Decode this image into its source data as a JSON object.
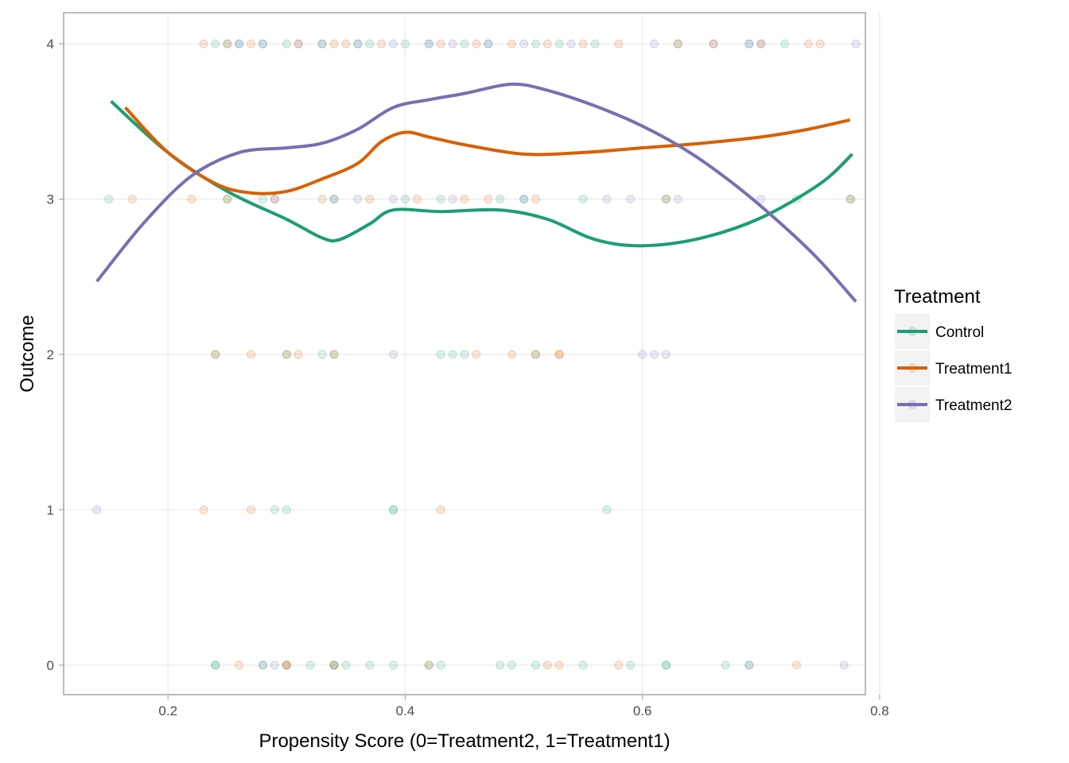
{
  "chart_data": {
    "type": "scatter",
    "xlabel": "Propensity Score (0=Treatment2, 1=Treatment1)",
    "ylabel": "Outcome",
    "xlim": [
      0.112,
      0.788
    ],
    "ylim": [
      -0.19,
      4.2
    ],
    "x_ticks": [
      0.2,
      0.4,
      0.6,
      0.8
    ],
    "x_tick_labels": [
      "0.2",
      "0.4",
      "0.6",
      "0.8"
    ],
    "y_ticks": [
      0,
      1,
      2,
      3,
      4
    ],
    "y_tick_labels": [
      "0",
      "1",
      "2",
      "3",
      "4"
    ],
    "grid": true,
    "legend": {
      "title": "Treatment",
      "position": "right"
    },
    "series": [
      {
        "name": "Control",
        "color": "#1b9e77",
        "smooth": [
          [
            0.152,
            3.63
          ],
          [
            0.2,
            3.3
          ],
          [
            0.25,
            3.05
          ],
          [
            0.3,
            2.87
          ],
          [
            0.33,
            2.75
          ],
          [
            0.345,
            2.74
          ],
          [
            0.37,
            2.84
          ],
          [
            0.39,
            2.93
          ],
          [
            0.43,
            2.92
          ],
          [
            0.48,
            2.93
          ],
          [
            0.52,
            2.87
          ],
          [
            0.56,
            2.74
          ],
          [
            0.6,
            2.7
          ],
          [
            0.65,
            2.75
          ],
          [
            0.7,
            2.88
          ],
          [
            0.75,
            3.1
          ],
          [
            0.777,
            3.29
          ]
        ],
        "points": [
          [
            0.24,
            4
          ],
          [
            0.25,
            4
          ],
          [
            0.26,
            4
          ],
          [
            0.28,
            4
          ],
          [
            0.3,
            4
          ],
          [
            0.33,
            4
          ],
          [
            0.36,
            4
          ],
          [
            0.37,
            4
          ],
          [
            0.4,
            4
          ],
          [
            0.42,
            4
          ],
          [
            0.45,
            4
          ],
          [
            0.47,
            4
          ],
          [
            0.51,
            4
          ],
          [
            0.53,
            4
          ],
          [
            0.56,
            4
          ],
          [
            0.63,
            4
          ],
          [
            0.69,
            4
          ],
          [
            0.72,
            4
          ],
          [
            0.15,
            3
          ],
          [
            0.25,
            3
          ],
          [
            0.28,
            3
          ],
          [
            0.34,
            3
          ],
          [
            0.4,
            3
          ],
          [
            0.43,
            3
          ],
          [
            0.48,
            3
          ],
          [
            0.5,
            3
          ],
          [
            0.55,
            3
          ],
          [
            0.62,
            3
          ],
          [
            0.73,
            3
          ],
          [
            0.776,
            3
          ],
          [
            0.24,
            2
          ],
          [
            0.3,
            2
          ],
          [
            0.33,
            2
          ],
          [
            0.34,
            2
          ],
          [
            0.43,
            2
          ],
          [
            0.44,
            2
          ],
          [
            0.45,
            2
          ],
          [
            0.51,
            2
          ],
          [
            0.29,
            1
          ],
          [
            0.3,
            1
          ],
          [
            0.39,
            1
          ],
          [
            0.39,
            1
          ],
          [
            0.57,
            1
          ],
          [
            0.24,
            0
          ],
          [
            0.24,
            0
          ],
          [
            0.28,
            0
          ],
          [
            0.3,
            0
          ],
          [
            0.32,
            0
          ],
          [
            0.34,
            0
          ],
          [
            0.34,
            0
          ],
          [
            0.35,
            0
          ],
          [
            0.37,
            0
          ],
          [
            0.39,
            0
          ],
          [
            0.42,
            0
          ],
          [
            0.43,
            0
          ],
          [
            0.48,
            0
          ],
          [
            0.49,
            0
          ],
          [
            0.51,
            0
          ],
          [
            0.55,
            0
          ],
          [
            0.59,
            0
          ],
          [
            0.62,
            0
          ],
          [
            0.62,
            0
          ],
          [
            0.67,
            0
          ],
          [
            0.69,
            0
          ]
        ]
      },
      {
        "name": "Treatment1",
        "color": "#d95f02",
        "smooth": [
          [
            0.164,
            3.59
          ],
          [
            0.2,
            3.3
          ],
          [
            0.24,
            3.1
          ],
          [
            0.27,
            3.04
          ],
          [
            0.3,
            3.05
          ],
          [
            0.33,
            3.13
          ],
          [
            0.36,
            3.23
          ],
          [
            0.38,
            3.37
          ],
          [
            0.4,
            3.43
          ],
          [
            0.42,
            3.4
          ],
          [
            0.45,
            3.35
          ],
          [
            0.5,
            3.29
          ],
          [
            0.55,
            3.3
          ],
          [
            0.6,
            3.33
          ],
          [
            0.65,
            3.36
          ],
          [
            0.7,
            3.4
          ],
          [
            0.74,
            3.45
          ],
          [
            0.775,
            3.51
          ]
        ],
        "points": [
          [
            0.23,
            4
          ],
          [
            0.25,
            4
          ],
          [
            0.27,
            4
          ],
          [
            0.31,
            4
          ],
          [
            0.34,
            4
          ],
          [
            0.35,
            4
          ],
          [
            0.38,
            4
          ],
          [
            0.43,
            4
          ],
          [
            0.46,
            4
          ],
          [
            0.49,
            4
          ],
          [
            0.52,
            4
          ],
          [
            0.55,
            4
          ],
          [
            0.58,
            4
          ],
          [
            0.63,
            4
          ],
          [
            0.66,
            4
          ],
          [
            0.7,
            4
          ],
          [
            0.74,
            4
          ],
          [
            0.75,
            4
          ],
          [
            0.17,
            3
          ],
          [
            0.22,
            3
          ],
          [
            0.25,
            3
          ],
          [
            0.29,
            3
          ],
          [
            0.33,
            3
          ],
          [
            0.37,
            3
          ],
          [
            0.41,
            3
          ],
          [
            0.45,
            3
          ],
          [
            0.47,
            3
          ],
          [
            0.51,
            3
          ],
          [
            0.62,
            3
          ],
          [
            0.775,
            3
          ],
          [
            0.24,
            2
          ],
          [
            0.27,
            2
          ],
          [
            0.3,
            2
          ],
          [
            0.31,
            2
          ],
          [
            0.34,
            2
          ],
          [
            0.46,
            2
          ],
          [
            0.49,
            2
          ],
          [
            0.51,
            2
          ],
          [
            0.53,
            2
          ],
          [
            0.53,
            2
          ],
          [
            0.23,
            1
          ],
          [
            0.27,
            1
          ],
          [
            0.43,
            1
          ],
          [
            0.26,
            0
          ],
          [
            0.3,
            0
          ],
          [
            0.3,
            0
          ],
          [
            0.34,
            0
          ],
          [
            0.42,
            0
          ],
          [
            0.52,
            0
          ],
          [
            0.53,
            0
          ],
          [
            0.58,
            0
          ],
          [
            0.73,
            0
          ]
        ]
      },
      {
        "name": "Treatment2",
        "color": "#7570b3",
        "smooth": [
          [
            0.14,
            2.47
          ],
          [
            0.18,
            2.85
          ],
          [
            0.22,
            3.15
          ],
          [
            0.26,
            3.3
          ],
          [
            0.3,
            3.33
          ],
          [
            0.33,
            3.36
          ],
          [
            0.36,
            3.45
          ],
          [
            0.39,
            3.59
          ],
          [
            0.42,
            3.64
          ],
          [
            0.45,
            3.68
          ],
          [
            0.49,
            3.74
          ],
          [
            0.52,
            3.7
          ],
          [
            0.56,
            3.6
          ],
          [
            0.6,
            3.47
          ],
          [
            0.64,
            3.3
          ],
          [
            0.68,
            3.08
          ],
          [
            0.72,
            2.82
          ],
          [
            0.75,
            2.6
          ],
          [
            0.78,
            2.34
          ]
        ],
        "points": [
          [
            0.26,
            4
          ],
          [
            0.28,
            4
          ],
          [
            0.31,
            4
          ],
          [
            0.33,
            4
          ],
          [
            0.36,
            4
          ],
          [
            0.39,
            4
          ],
          [
            0.42,
            4
          ],
          [
            0.44,
            4
          ],
          [
            0.47,
            4
          ],
          [
            0.5,
            4
          ],
          [
            0.54,
            4
          ],
          [
            0.61,
            4
          ],
          [
            0.66,
            4
          ],
          [
            0.69,
            4
          ],
          [
            0.7,
            4
          ],
          [
            0.78,
            4
          ],
          [
            0.29,
            3
          ],
          [
            0.34,
            3
          ],
          [
            0.36,
            3
          ],
          [
            0.39,
            3
          ],
          [
            0.44,
            3
          ],
          [
            0.5,
            3
          ],
          [
            0.57,
            3
          ],
          [
            0.59,
            3
          ],
          [
            0.63,
            3
          ],
          [
            0.7,
            3
          ],
          [
            0.39,
            2
          ],
          [
            0.6,
            2
          ],
          [
            0.61,
            2
          ],
          [
            0.62,
            2
          ],
          [
            0.14,
            1
          ],
          [
            0.28,
            0
          ],
          [
            0.29,
            0
          ],
          [
            0.69,
            0
          ],
          [
            0.77,
            0
          ]
        ]
      }
    ]
  }
}
